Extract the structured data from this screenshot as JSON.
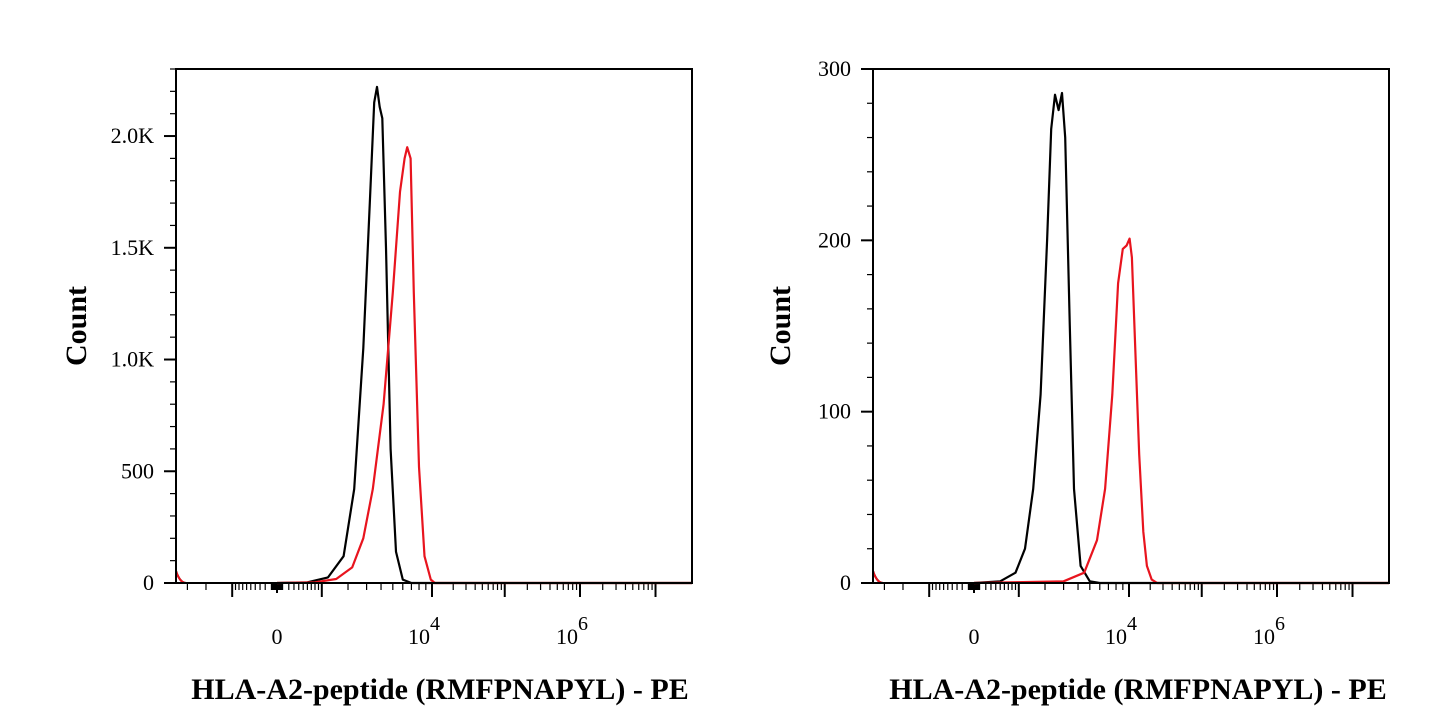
{
  "chart_data": [
    {
      "type": "line",
      "xlabel": "HLA-A2-peptide (RMFPNAPYL) - PE",
      "ylabel": "Count",
      "x_scale": "biexponential",
      "ylim": [
        0,
        2300
      ],
      "y_ticks": [
        {
          "value": 0,
          "label": "0"
        },
        {
          "value": 500,
          "label": "500"
        },
        {
          "value": 1000,
          "label": "1.0K"
        },
        {
          "value": 1500,
          "label": "1.5K"
        },
        {
          "value": 2000,
          "label": "2.0K"
        }
      ],
      "x_ticks": [
        {
          "value": 0,
          "label": "0"
        },
        {
          "value": 10000,
          "label": "10",
          "exp": "4"
        },
        {
          "value": 1000000,
          "label": "10",
          "exp": "6"
        }
      ],
      "series": [
        {
          "color": "#000000",
          "points": [
            [
              0,
              0
            ],
            [
              600,
              3
            ],
            [
              1200,
              25
            ],
            [
              1800,
              120
            ],
            [
              2300,
              420
            ],
            [
              2800,
              1050
            ],
            [
              3200,
              1700
            ],
            [
              3500,
              2150
            ],
            [
              3700,
              2220
            ],
            [
              3900,
              2130
            ],
            [
              4100,
              2080
            ],
            [
              4400,
              1500
            ],
            [
              4800,
              600
            ],
            [
              5300,
              140
            ],
            [
              6000,
              15
            ],
            [
              7000,
              0
            ],
            [
              100000,
              0
            ]
          ]
        },
        {
          "color": "#e8141e",
          "points": [
            [
              0,
              0
            ],
            [
              800,
              3
            ],
            [
              1500,
              18
            ],
            [
              2200,
              70
            ],
            [
              2800,
              200
            ],
            [
              3400,
              420
            ],
            [
              4200,
              800
            ],
            [
              5000,
              1300
            ],
            [
              5700,
              1750
            ],
            [
              6200,
              1900
            ],
            [
              6500,
              1950
            ],
            [
              6900,
              1900
            ],
            [
              7300,
              1300
            ],
            [
              8000,
              520
            ],
            [
              8800,
              120
            ],
            [
              9800,
              15
            ],
            [
              11000,
              0
            ],
            [
              100000,
              0
            ]
          ]
        }
      ]
    },
    {
      "type": "line",
      "xlabel": "HLA-A2-peptide (RMFPNAPYL) - PE",
      "ylabel": "Count",
      "x_scale": "biexponential",
      "ylim": [
        0,
        300
      ],
      "y_ticks": [
        {
          "value": 0,
          "label": "0"
        },
        {
          "value": 100,
          "label": "100"
        },
        {
          "value": 200,
          "label": "200"
        },
        {
          "value": 300,
          "label": "300"
        }
      ],
      "x_ticks": [
        {
          "value": 0,
          "label": "0"
        },
        {
          "value": 10000,
          "label": "10",
          "exp": "4"
        },
        {
          "value": 1000000,
          "label": "10",
          "exp": "6"
        }
      ],
      "series": [
        {
          "color": "#000000",
          "points": [
            [
              0,
              0
            ],
            [
              500,
              1
            ],
            [
              900,
              6
            ],
            [
              1200,
              20
            ],
            [
              1500,
              55
            ],
            [
              1800,
              110
            ],
            [
              2100,
              200
            ],
            [
              2300,
              265
            ],
            [
              2500,
              285
            ],
            [
              2700,
              276
            ],
            [
              2900,
              286
            ],
            [
              3100,
              260
            ],
            [
              3400,
              150
            ],
            [
              3700,
              55
            ],
            [
              4200,
              10
            ],
            [
              5000,
              1
            ],
            [
              6000,
              0
            ],
            [
              100000,
              0
            ]
          ]
        },
        {
          "color": "#e8141e",
          "points": [
            [
              0,
              0
            ],
            [
              3000,
              1
            ],
            [
              4500,
              6
            ],
            [
              5700,
              25
            ],
            [
              6600,
              55
            ],
            [
              7500,
              110
            ],
            [
              8300,
              175
            ],
            [
              9000,
              195
            ],
            [
              9600,
              197
            ],
            [
              10200,
              201
            ],
            [
              11000,
              190
            ],
            [
              12500,
              130
            ],
            [
              14000,
              75
            ],
            [
              16000,
              30
            ],
            [
              18000,
              10
            ],
            [
              21000,
              2
            ],
            [
              25000,
              0
            ],
            [
              100000,
              0
            ]
          ]
        }
      ]
    }
  ]
}
